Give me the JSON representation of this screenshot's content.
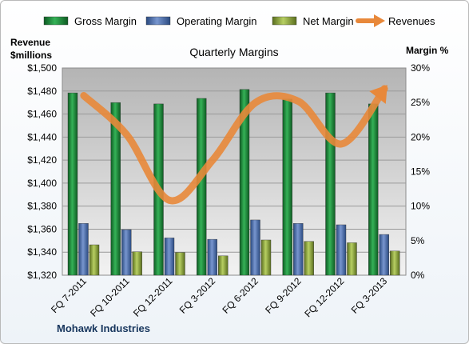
{
  "chart_data": {
    "type": "bar",
    "title": "Quarterly Margins",
    "categories": [
      "FQ 7-2011",
      "FQ 10-2011",
      "FQ 12-2011",
      "FQ 3-2012",
      "FQ 6-2012",
      "FQ 9-2012",
      "FQ 12-2012",
      "FQ 3-2013"
    ],
    "y_left_label_lines": [
      "Revenue",
      "$millions"
    ],
    "y_right_label": "Margin %",
    "y_left_range": [
      1320,
      1500
    ],
    "y_right_range": [
      0,
      30
    ],
    "y_left_ticks": [
      "$1,320",
      "$1,340",
      "$1,360",
      "$1,380",
      "$1,400",
      "$1,420",
      "$1,440",
      "$1,460",
      "$1,480",
      "$1,500"
    ],
    "y_right_ticks": [
      "0%",
      "5%",
      "10%",
      "15%",
      "20%",
      "25%",
      "30%"
    ],
    "grid": true,
    "legend_position": "top",
    "series": [
      {
        "name": "Gross Margin",
        "axis": "right",
        "kind": "bar",
        "color": "#1f8a3c",
        "values": [
          26.4,
          25.0,
          24.8,
          25.6,
          26.9,
          25.5,
          26.4,
          24.8
        ]
      },
      {
        "name": "Operating Margin",
        "axis": "right",
        "kind": "bar",
        "color": "#4a6fae",
        "values": [
          7.5,
          6.6,
          5.4,
          5.2,
          8.0,
          7.5,
          7.3,
          5.9
        ]
      },
      {
        "name": "Net Margin",
        "axis": "right",
        "kind": "bar",
        "color": "#8aa33a",
        "values": [
          4.4,
          3.4,
          3.3,
          2.8,
          5.1,
          4.9,
          4.7,
          3.5
        ]
      },
      {
        "name": "Revenues",
        "axis": "left",
        "kind": "line",
        "color": "#e8883a",
        "values": [
          1476,
          1442,
          1385,
          1420,
          1470,
          1471,
          1434,
          1482
        ]
      }
    ],
    "source_label": "Mohawk Industries"
  }
}
